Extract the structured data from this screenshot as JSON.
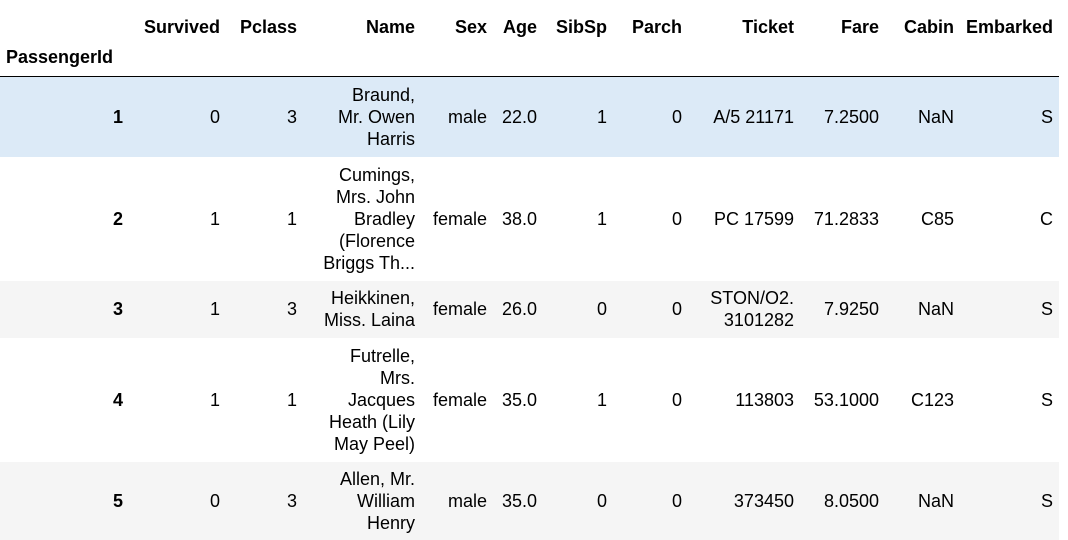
{
  "table": {
    "index_name": "PassengerId",
    "columns": [
      "Survived",
      "Pclass",
      "Name",
      "Sex",
      "Age",
      "SibSp",
      "Parch",
      "Ticket",
      "Fare",
      "Cabin",
      "Embarked"
    ],
    "rows": [
      {
        "id": "1",
        "cells": [
          "0",
          "3",
          [
            "Braund,",
            "Mr. Owen",
            "Harris"
          ],
          "male",
          "22.0",
          "1",
          "0",
          [
            "A/5 21171"
          ],
          "7.2500",
          "NaN",
          "S"
        ]
      },
      {
        "id": "2",
        "cells": [
          "1",
          "1",
          [
            "Cumings,",
            "Mrs. John",
            "Bradley",
            "(Florence",
            "Briggs Th..."
          ],
          "female",
          "38.0",
          "1",
          "0",
          [
            "PC 17599"
          ],
          "71.2833",
          "C85",
          "C"
        ]
      },
      {
        "id": "3",
        "cells": [
          "1",
          "3",
          [
            "Heikkinen,",
            "Miss. Laina"
          ],
          "female",
          "26.0",
          "0",
          "0",
          [
            "STON/O2.",
            "3101282"
          ],
          "7.9250",
          "NaN",
          "S"
        ]
      },
      {
        "id": "4",
        "cells": [
          "1",
          "1",
          [
            "Futrelle,",
            "Mrs.",
            "Jacques",
            "Heath (Lily",
            "May Peel)"
          ],
          "female",
          "35.0",
          "1",
          "0",
          [
            "113803"
          ],
          "53.1000",
          "C123",
          "S"
        ]
      },
      {
        "id": "5",
        "cells": [
          "0",
          "3",
          [
            "Allen, Mr.",
            "William",
            "Henry"
          ],
          "male",
          "35.0",
          "0",
          "0",
          [
            "373450"
          ],
          "8.0500",
          "NaN",
          "S"
        ]
      }
    ]
  },
  "colors": {
    "hover_row": "#dceaf7",
    "stripe_row": "#f5f5f5",
    "plain_row": "#ffffff"
  }
}
